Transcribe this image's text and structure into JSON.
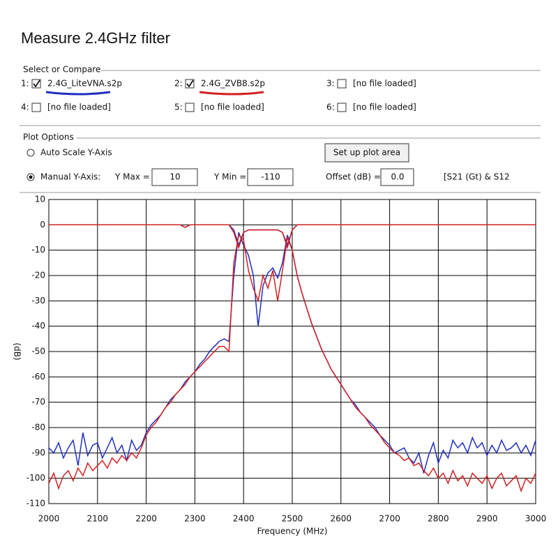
{
  "header": {
    "title": "Measure 2.4GHz filter"
  },
  "select_group": {
    "title": "Select or Compare",
    "slots": [
      {
        "number": "1:",
        "checked": true,
        "label": "2.4G_LiteVNA.s2p",
        "underline": "#1f2fbf"
      },
      {
        "number": "2:",
        "checked": true,
        "label": "2.4G_ZVB8.s2p",
        "underline": "#d42020"
      },
      {
        "number": "3:",
        "checked": false,
        "label": "[no file loaded]"
      },
      {
        "number": "4:",
        "checked": false,
        "label": "[no file loaded]"
      },
      {
        "number": "5:",
        "checked": false,
        "label": "[no file loaded]"
      },
      {
        "number": "6:",
        "checked": false,
        "label": "[no file loaded]"
      }
    ]
  },
  "plot_options": {
    "title": "Plot Options",
    "auto_scale": "Auto Scale Y-Axis",
    "setup_button": "Set up plot area",
    "manual": "Manual Y-Axis:",
    "ymax_label": "Y Max =",
    "ymax_value": "10",
    "ymin_label": "Y Min =",
    "ymin_value": "-110",
    "offset_label": "Offset (dB) =",
    "offset_value": "0.0",
    "mode": "[S21 (Gt) & S12"
  },
  "chart_data": {
    "type": "line",
    "x_label": "Frequency (MHz)",
    "y_label": "(dB)",
    "xlim": [
      2000,
      3000
    ],
    "xticks": [
      2000,
      2100,
      2200,
      2300,
      2400,
      2500,
      2600,
      2700,
      2800,
      2900,
      3000
    ],
    "ylim": [
      -110,
      10
    ],
    "yticks": [
      -110,
      -100,
      -90,
      -80,
      -70,
      -60,
      -50,
      -40,
      -30,
      -20,
      -10,
      0,
      10
    ],
    "grid": true,
    "x": [
      2000,
      2010,
      2020,
      2030,
      2040,
      2050,
      2060,
      2070,
      2080,
      2090,
      2100,
      2110,
      2120,
      2130,
      2140,
      2150,
      2160,
      2170,
      2180,
      2190,
      2200,
      2210,
      2220,
      2230,
      2240,
      2250,
      2260,
      2270,
      2280,
      2290,
      2300,
      2310,
      2320,
      2330,
      2340,
      2350,
      2360,
      2370,
      2380,
      2390,
      2400,
      2410,
      2420,
      2430,
      2440,
      2450,
      2460,
      2470,
      2480,
      2490,
      2500,
      2510,
      2520,
      2530,
      2540,
      2550,
      2560,
      2570,
      2580,
      2590,
      2600,
      2610,
      2620,
      2630,
      2640,
      2650,
      2660,
      2670,
      2680,
      2690,
      2700,
      2710,
      2720,
      2730,
      2740,
      2750,
      2760,
      2770,
      2780,
      2790,
      2800,
      2810,
      2820,
      2830,
      2840,
      2850,
      2860,
      2870,
      2880,
      2890,
      2900,
      2910,
      2920,
      2930,
      2940,
      2950,
      2960,
      2970,
      2980,
      2990,
      3000
    ],
    "series": [
      {
        "name": "2.4G_LiteVNA.s2p",
        "color": "#1f2fbf",
        "values": [
          -88,
          -90,
          -86,
          -92,
          -88,
          -85,
          -95,
          -82,
          -91,
          -87,
          -86,
          -92,
          -88,
          -84,
          -90,
          -87,
          -93,
          -85,
          -89,
          -87,
          -82,
          -79,
          -77,
          -75,
          -72,
          -69,
          -67,
          -65,
          -62,
          -60,
          -58,
          -55,
          -53,
          -50,
          -48,
          -46,
          -45,
          -46,
          -20,
          -3,
          -8,
          -12,
          -20,
          -40,
          -24,
          -19,
          -17,
          -21,
          -15,
          -4,
          -10,
          -20,
          -27,
          -33,
          -39,
          -44,
          -49,
          -53,
          -57,
          -60,
          -63,
          -66,
          -69,
          -71,
          -74,
          -76,
          -78,
          -80,
          -83,
          -85,
          -87,
          -90,
          -89,
          -88,
          -92,
          -94,
          -90,
          -98,
          -91,
          -86,
          -94,
          -89,
          -92,
          -85,
          -88,
          -86,
          -90,
          -84,
          -88,
          -86,
          -91,
          -87,
          -90,
          -85,
          -89,
          -88,
          -86,
          -90,
          -87,
          -91,
          -85
        ],
        "s12_values": [
          0,
          0,
          0,
          0,
          0,
          0,
          0,
          0,
          0,
          0,
          0,
          0,
          0,
          0,
          0,
          0,
          0,
          0,
          0,
          0,
          0,
          0,
          0,
          0,
          0,
          0,
          0,
          0,
          -1,
          0,
          0,
          0,
          0,
          0,
          0,
          0,
          0,
          0,
          -2,
          -8,
          -3,
          -2,
          -2,
          -2,
          -2,
          -2,
          -2,
          -2,
          -3,
          -8,
          -2,
          0,
          0,
          0,
          0,
          0,
          0,
          0,
          0,
          0,
          0,
          0,
          0,
          0,
          0,
          0,
          0,
          0,
          0,
          0,
          0,
          0,
          0,
          0,
          0,
          0,
          0,
          0,
          0,
          0,
          0,
          0,
          0,
          0,
          0,
          0,
          0,
          0,
          0,
          0,
          0,
          0,
          0,
          0,
          0,
          0,
          0,
          0,
          0,
          0,
          0
        ]
      },
      {
        "name": "2.4G_ZVB8.s2p",
        "color": "#d42020",
        "values": [
          -102,
          -98,
          -104,
          -99,
          -97,
          -101,
          -96,
          -99,
          -94,
          -97,
          -95,
          -93,
          -96,
          -92,
          -94,
          -91,
          -93,
          -90,
          -92,
          -88,
          -83,
          -80,
          -78,
          -75,
          -72,
          -70,
          -67,
          -65,
          -63,
          -60,
          -58,
          -56,
          -54,
          -52,
          -50,
          -48,
          -48,
          -50,
          -15,
          -4,
          -6,
          -18,
          -25,
          -30,
          -20,
          -25,
          -18,
          -30,
          -18,
          -5,
          -10,
          -20,
          -27,
          -33,
          -39,
          -44,
          -49,
          -53,
          -57,
          -60,
          -63,
          -66,
          -69,
          -72,
          -74,
          -76,
          -79,
          -81,
          -83,
          -86,
          -88,
          -90,
          -91,
          -93,
          -92,
          -95,
          -94,
          -97,
          -99,
          -96,
          -100,
          -98,
          -102,
          -97,
          -101,
          -99,
          -103,
          -98,
          -100,
          -102,
          -99,
          -104,
          -100,
          -98,
          -103,
          -101,
          -99,
          -105,
          -100,
          -102,
          -98
        ],
        "s12_values": [
          0,
          0,
          0,
          0,
          0,
          0,
          0,
          0,
          0,
          0,
          0,
          0,
          0,
          0,
          0,
          0,
          0,
          0,
          0,
          0,
          0,
          0,
          0,
          0,
          0,
          0,
          0,
          0,
          -1,
          0,
          0,
          0,
          0,
          0,
          0,
          0,
          0,
          0,
          -3,
          -9,
          -3,
          -2,
          -2,
          -2,
          -2,
          -2,
          -2,
          -2,
          -3,
          -9,
          -2,
          0,
          0,
          0,
          0,
          0,
          0,
          0,
          0,
          0,
          0,
          0,
          0,
          0,
          0,
          0,
          0,
          0,
          0,
          0,
          0,
          0,
          0,
          0,
          0,
          0,
          0,
          0,
          0,
          0,
          0,
          0,
          0,
          0,
          0,
          0,
          0,
          0,
          0,
          0,
          0,
          0,
          0,
          0,
          0,
          0,
          0,
          0,
          0,
          0,
          0
        ]
      }
    ]
  }
}
